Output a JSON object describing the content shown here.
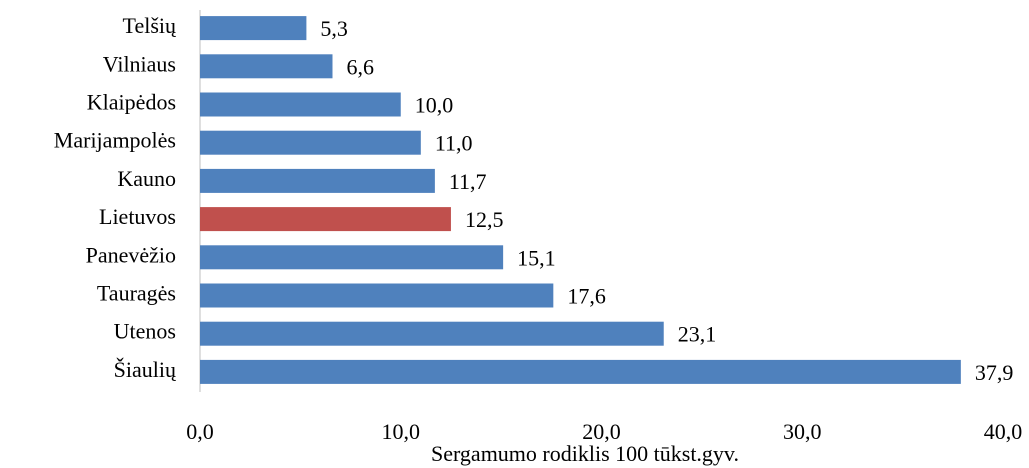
{
  "chart_data": {
    "type": "hbar",
    "categories": [
      "Telšių",
      "Vilniaus",
      "Klaipėdos",
      "Marijampolės",
      "Kauno",
      "Lietuvos",
      "Panevėžio",
      "Tauragės",
      "Utenos",
      "Šiaulių"
    ],
    "values": [
      5.3,
      6.6,
      10.0,
      11.0,
      11.7,
      12.5,
      15.1,
      17.6,
      23.1,
      37.9
    ],
    "value_labels": [
      "5,3",
      "6,6",
      "10,0",
      "11,0",
      "11,7",
      "12,5",
      "15,1",
      "17,6",
      "23,1",
      "37,9"
    ],
    "colors": [
      "#4f81bd",
      "#4f81bd",
      "#4f81bd",
      "#4f81bd",
      "#4f81bd",
      "#c0504d",
      "#4f81bd",
      "#4f81bd",
      "#4f81bd",
      "#4f81bd"
    ],
    "xlim": [
      0,
      40
    ],
    "xticks": [
      {
        "value": 0,
        "label": "0,0"
      },
      {
        "value": 10,
        "label": "10,0"
      },
      {
        "value": 20,
        "label": "20,0"
      },
      {
        "value": 30,
        "label": "30,0"
      },
      {
        "value": 40,
        "label": "40,0"
      }
    ],
    "x_label": "Sergamumo rodiklis 100 tūkst.gyv."
  }
}
